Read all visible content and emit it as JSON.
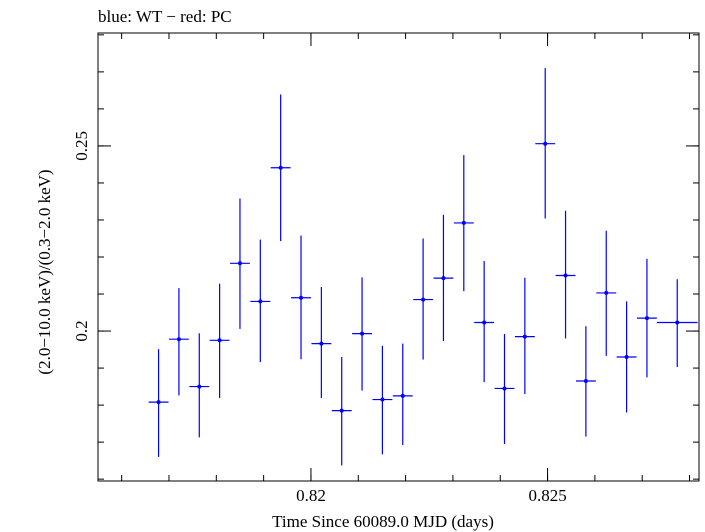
{
  "chart_data": {
    "type": "scatter",
    "title": "blue: WT − red: PC",
    "xlabel": "Time Since 60089.0 MJD (days)",
    "ylabel": "(2.0−10.0 keV)/(0.3−2.0 keV)",
    "xlim": [
      0.8155,
      0.8282
    ],
    "ylim": [
      0.1595,
      0.2805
    ],
    "x_ticks": [
      {
        "value": 0.82,
        "label": "0.82"
      },
      {
        "value": 0.825,
        "label": "0.825"
      }
    ],
    "y_ticks": [
      {
        "value": 0.2,
        "label": "0.2"
      },
      {
        "value": 0.25,
        "label": "0.25"
      }
    ],
    "grid": false,
    "series": [
      {
        "color": "#0000ff",
        "points": [
          {
            "x": 0.81678,
            "xerr": 0.00021,
            "y": 0.1808,
            "yerr_lo": 0.0148,
            "yerr_hi": 0.0143
          },
          {
            "x": 0.81721,
            "xerr": 0.00021,
            "y": 0.1978,
            "yerr_lo": 0.0152,
            "yerr_hi": 0.0138
          },
          {
            "x": 0.81764,
            "xerr": 0.00021,
            "y": 0.185,
            "yerr_lo": 0.0137,
            "yerr_hi": 0.0144
          },
          {
            "x": 0.81807,
            "xerr": 0.00021,
            "y": 0.1975,
            "yerr_lo": 0.0156,
            "yerr_hi": 0.0153
          },
          {
            "x": 0.8185,
            "xerr": 0.00021,
            "y": 0.2183,
            "yerr_lo": 0.0177,
            "yerr_hi": 0.0175
          },
          {
            "x": 0.81893,
            "xerr": 0.00021,
            "y": 0.208,
            "yerr_lo": 0.0164,
            "yerr_hi": 0.0167
          },
          {
            "x": 0.81936,
            "xerr": 0.00021,
            "y": 0.2441,
            "yerr_lo": 0.0198,
            "yerr_hi": 0.0198
          },
          {
            "x": 0.81979,
            "xerr": 0.00021,
            "y": 0.209,
            "yerr_lo": 0.0166,
            "yerr_hi": 0.0168
          },
          {
            "x": 0.82022,
            "xerr": 0.00021,
            "y": 0.1966,
            "yerr_lo": 0.0147,
            "yerr_hi": 0.0153
          },
          {
            "x": 0.82065,
            "xerr": 0.00021,
            "y": 0.1785,
            "yerr_lo": 0.0148,
            "yerr_hi": 0.0145
          },
          {
            "x": 0.82108,
            "xerr": 0.00021,
            "y": 0.1993,
            "yerr_lo": 0.0154,
            "yerr_hi": 0.0152
          },
          {
            "x": 0.82151,
            "xerr": 0.00021,
            "y": 0.1815,
            "yerr_lo": 0.0148,
            "yerr_hi": 0.0145
          },
          {
            "x": 0.82194,
            "xerr": 0.00021,
            "y": 0.1825,
            "yerr_lo": 0.0133,
            "yerr_hi": 0.0141
          },
          {
            "x": 0.82237,
            "xerr": 0.00021,
            "y": 0.2085,
            "yerr_lo": 0.0162,
            "yerr_hi": 0.0165
          },
          {
            "x": 0.8228,
            "xerr": 0.00021,
            "y": 0.2143,
            "yerr_lo": 0.017,
            "yerr_hi": 0.0171
          },
          {
            "x": 0.82323,
            "xerr": 0.00021,
            "y": 0.2292,
            "yerr_lo": 0.0184,
            "yerr_hi": 0.0183
          },
          {
            "x": 0.82366,
            "xerr": 0.00021,
            "y": 0.2023,
            "yerr_lo": 0.0161,
            "yerr_hi": 0.0166
          },
          {
            "x": 0.82409,
            "xerr": 0.00021,
            "y": 0.1845,
            "yerr_lo": 0.015,
            "yerr_hi": 0.0147
          },
          {
            "x": 0.82452,
            "xerr": 0.00021,
            "y": 0.1985,
            "yerr_lo": 0.0155,
            "yerr_hi": 0.0159
          },
          {
            "x": 0.82495,
            "xerr": 0.00021,
            "y": 0.2506,
            "yerr_lo": 0.0202,
            "yerr_hi": 0.0204
          },
          {
            "x": 0.82538,
            "xerr": 0.00021,
            "y": 0.215,
            "yerr_lo": 0.017,
            "yerr_hi": 0.0175
          },
          {
            "x": 0.82581,
            "xerr": 0.00021,
            "y": 0.1865,
            "yerr_lo": 0.015,
            "yerr_hi": 0.0148
          },
          {
            "x": 0.82624,
            "xerr": 0.00021,
            "y": 0.2103,
            "yerr_lo": 0.017,
            "yerr_hi": 0.0168
          },
          {
            "x": 0.82667,
            "xerr": 0.00021,
            "y": 0.193,
            "yerr_lo": 0.015,
            "yerr_hi": 0.015
          },
          {
            "x": 0.8271,
            "xerr": 0.00021,
            "y": 0.2035,
            "yerr_lo": 0.016,
            "yerr_hi": 0.016
          },
          {
            "x": 0.82774,
            "xerr": 0.00043,
            "y": 0.2023,
            "yerr_lo": 0.012,
            "yerr_hi": 0.0117
          }
        ]
      }
    ]
  }
}
